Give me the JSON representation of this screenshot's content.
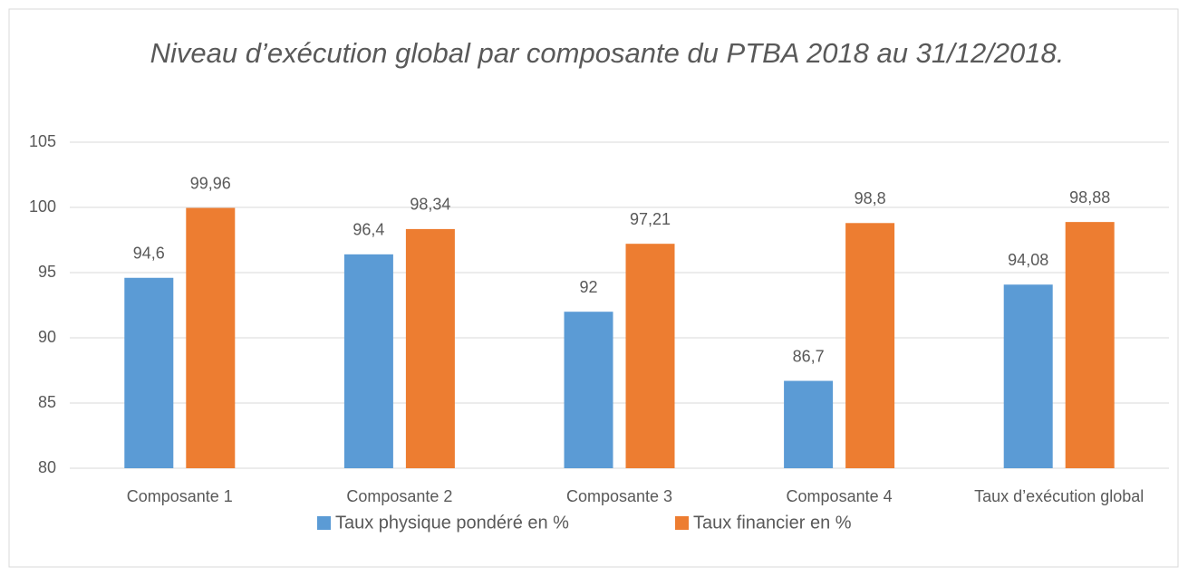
{
  "chart_data": {
    "type": "bar",
    "title": "Niveau d’exécution global  par composante du PTBA 2018 au 31/12/2018.",
    "categories": [
      "Composante 1",
      "Composante 2",
      "Composante 3",
      "Composante 4",
      "Taux d’exécution global"
    ],
    "series": [
      {
        "name": "Taux physique pondéré en %",
        "color": "#5b9bd5",
        "values": [
          94.6,
          96.4,
          92,
          86.7,
          94.08
        ],
        "value_labels": [
          "94,6",
          "96,4",
          "92",
          "86,7",
          "94,08"
        ]
      },
      {
        "name": "Taux financier en %",
        "color": "#ed7d31",
        "values": [
          99.96,
          98.34,
          97.21,
          98.8,
          98.88
        ],
        "value_labels": [
          "99,96",
          "98,34",
          "97,21",
          "98,8",
          "98,88"
        ]
      }
    ],
    "ylim": [
      80,
      105
    ],
    "yticks": [
      80,
      85,
      90,
      95,
      100,
      105
    ],
    "grid": true,
    "legend": "bottom"
  }
}
